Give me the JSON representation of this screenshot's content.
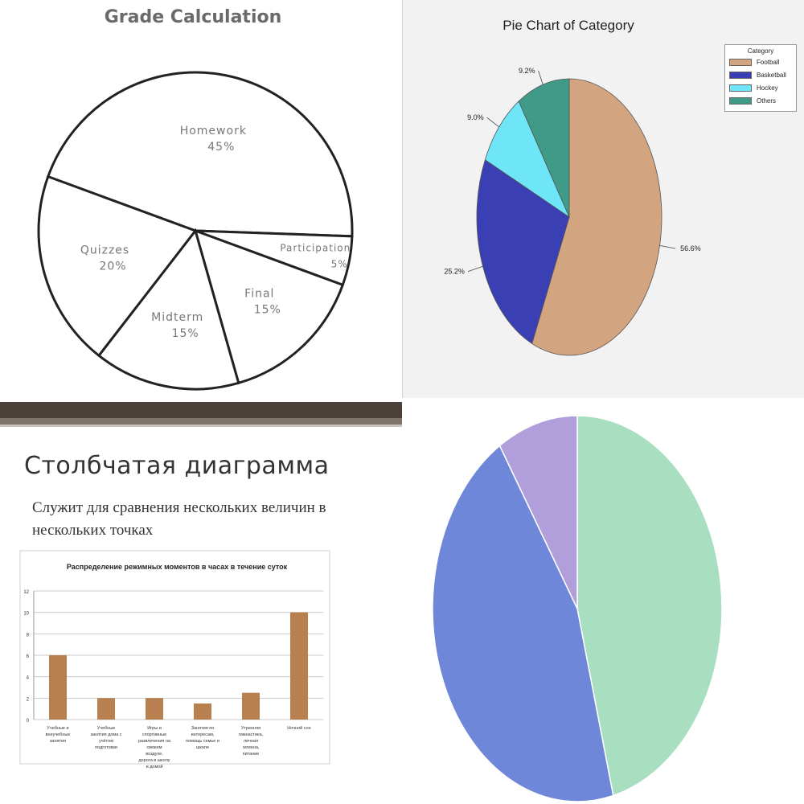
{
  "chart_data": [
    {
      "type": "pie",
      "title": "Grade Calculation",
      "categories": [
        "Homework",
        "Participation",
        "Final",
        "Midterm",
        "Quizzes"
      ],
      "values": [
        45,
        5,
        15,
        15,
        20
      ],
      "labels": [
        "45%",
        "5%",
        "15%",
        "15%",
        "20%"
      ]
    },
    {
      "type": "pie",
      "title": "Pie Chart of Category",
      "legend_title": "Category",
      "legend_position": "top-right",
      "categories": [
        "Football",
        "Basketball",
        "Hockey",
        "Others"
      ],
      "values": [
        56.6,
        25.2,
        9.0,
        9.2
      ],
      "labels": [
        "56.6%",
        "25.2%",
        "9.0%",
        "9.2%"
      ],
      "colors": [
        "#d2a480",
        "#3a3fb3",
        "#6ee6f7",
        "#3f9a88"
      ]
    },
    {
      "type": "bar",
      "heading": "Столбчатая диаграмма",
      "subheading": "Служит для сравнения нескольких величин в нескольких точках",
      "title": "Распределение режимных моментов в часах в течение суток",
      "categories": [
        "Учебные и внеучебные занятия",
        "Учебные занятия дома с учётом подготовки",
        "Игры и спортивные развлечения на свежем воздухе, дорога в школу и домой",
        "Занятия по интересам, помощь семье и школе",
        "Утренняя гимнастика, личная гигиена, питание",
        "Ночной сон"
      ],
      "values": [
        6,
        2,
        2,
        1.5,
        2.5,
        10
      ],
      "ylim": [
        0,
        12
      ],
      "yticks": [
        0,
        2,
        4,
        6,
        8,
        10,
        12
      ],
      "grid": true,
      "bar_color": "#b8804f"
    },
    {
      "type": "pie",
      "values": [
        46,
        45,
        9
      ],
      "colors": [
        "#a8dfc0",
        "#6f87d8",
        "#b19fdc"
      ]
    }
  ]
}
